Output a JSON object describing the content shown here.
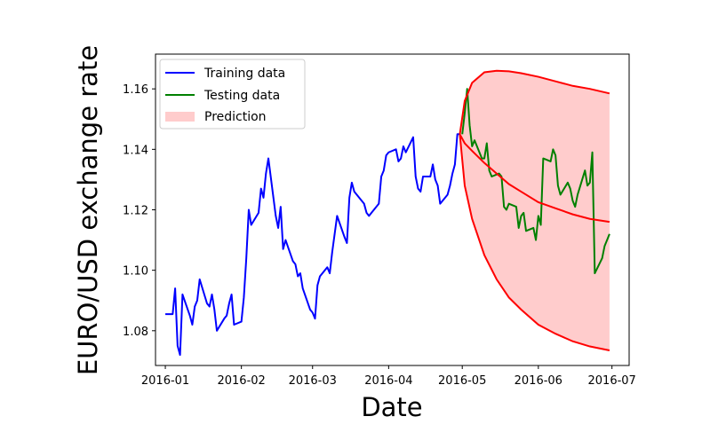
{
  "chart_data": {
    "type": "line",
    "title": "",
    "xlabel": "Date",
    "ylabel": "EURO/USD exchange rate",
    "x_ticks": [
      "2016-01",
      "2016-02",
      "2016-03",
      "2016-04",
      "2016-05",
      "2016-06",
      "2016-07"
    ],
    "y_ticks": [
      "1.08",
      "1.10",
      "1.12",
      "1.14",
      "1.16"
    ],
    "xlim": [
      "2015-12-28",
      "2016-07-08"
    ],
    "ylim": [
      1.0685,
      1.1715
    ],
    "grid": false,
    "legend_position": "top-left",
    "series": [
      {
        "name": "Training data",
        "color": "#0000ff",
        "x": [
          "2016-01-01",
          "2016-01-04",
          "2016-01-05",
          "2016-01-06",
          "2016-01-07",
          "2016-01-08",
          "2016-01-11",
          "2016-01-12",
          "2016-01-13",
          "2016-01-14",
          "2016-01-15",
          "2016-01-18",
          "2016-01-19",
          "2016-01-20",
          "2016-01-21",
          "2016-01-22",
          "2016-01-25",
          "2016-01-26",
          "2016-01-27",
          "2016-01-28",
          "2016-01-29",
          "2016-02-01",
          "2016-02-02",
          "2016-02-03",
          "2016-02-04",
          "2016-02-05",
          "2016-02-08",
          "2016-02-09",
          "2016-02-10",
          "2016-02-11",
          "2016-02-12",
          "2016-02-15",
          "2016-02-16",
          "2016-02-17",
          "2016-02-18",
          "2016-02-19",
          "2016-02-22",
          "2016-02-23",
          "2016-02-24",
          "2016-02-25",
          "2016-02-26",
          "2016-02-29",
          "2016-03-01",
          "2016-03-02",
          "2016-03-03",
          "2016-03-04",
          "2016-03-07",
          "2016-03-08",
          "2016-03-09",
          "2016-03-10",
          "2016-03-11",
          "2016-03-14",
          "2016-03-15",
          "2016-03-16",
          "2016-03-17",
          "2016-03-18",
          "2016-03-21",
          "2016-03-22",
          "2016-03-23",
          "2016-03-24",
          "2016-03-25",
          "2016-03-28",
          "2016-03-29",
          "2016-03-30",
          "2016-03-31",
          "2016-04-01",
          "2016-04-04",
          "2016-04-05",
          "2016-04-06",
          "2016-04-07",
          "2016-04-08",
          "2016-04-11",
          "2016-04-12",
          "2016-04-13",
          "2016-04-14",
          "2016-04-15",
          "2016-04-18",
          "2016-04-19",
          "2016-04-20",
          "2016-04-21",
          "2016-04-22",
          "2016-04-25",
          "2016-04-26",
          "2016-04-27",
          "2016-04-28",
          "2016-04-29",
          "2016-04-30"
        ],
        "values": [
          1.0855,
          1.0855,
          1.094,
          1.075,
          1.072,
          1.092,
          1.085,
          1.082,
          1.088,
          1.09,
          1.097,
          1.089,
          1.088,
          1.092,
          1.087,
          1.08,
          1.084,
          1.085,
          1.089,
          1.092,
          1.082,
          1.083,
          1.091,
          1.104,
          1.12,
          1.115,
          1.119,
          1.127,
          1.124,
          1.132,
          1.137,
          1.118,
          1.114,
          1.121,
          1.107,
          1.11,
          1.103,
          1.102,
          1.098,
          1.099,
          1.094,
          1.087,
          1.086,
          1.084,
          1.095,
          1.098,
          1.101,
          1.099,
          1.106,
          1.112,
          1.118,
          1.111,
          1.109,
          1.124,
          1.129,
          1.126,
          1.123,
          1.122,
          1.119,
          1.118,
          1.119,
          1.122,
          1.131,
          1.133,
          1.138,
          1.139,
          1.14,
          1.136,
          1.137,
          1.141,
          1.139,
          1.144,
          1.131,
          1.127,
          1.126,
          1.131,
          1.131,
          1.135,
          1.13,
          1.128,
          1.122,
          1.125,
          1.128,
          1.132,
          1.135,
          1.145,
          1.145
        ]
      },
      {
        "name": "Testing data",
        "color": "#008000",
        "x": [
          "2016-05-01",
          "2016-05-02",
          "2016-05-03",
          "2016-05-04",
          "2016-05-05",
          "2016-05-06",
          "2016-05-09",
          "2016-05-10",
          "2016-05-11",
          "2016-05-12",
          "2016-05-13",
          "2016-05-16",
          "2016-05-17",
          "2016-05-18",
          "2016-05-19",
          "2016-05-20",
          "2016-05-23",
          "2016-05-24",
          "2016-05-25",
          "2016-05-26",
          "2016-05-27",
          "2016-05-30",
          "2016-05-31",
          "2016-06-01",
          "2016-06-02",
          "2016-06-03",
          "2016-06-06",
          "2016-06-07",
          "2016-06-08",
          "2016-06-09",
          "2016-06-10",
          "2016-06-13",
          "2016-06-14",
          "2016-06-15",
          "2016-06-16",
          "2016-06-17",
          "2016-06-20",
          "2016-06-21",
          "2016-06-22",
          "2016-06-23",
          "2016-06-24",
          "2016-06-27",
          "2016-06-28",
          "2016-06-29",
          "2016-06-30"
        ],
        "values": [
          1.145,
          1.152,
          1.16,
          1.148,
          1.141,
          1.143,
          1.137,
          1.137,
          1.142,
          1.133,
          1.131,
          1.132,
          1.131,
          1.121,
          1.12,
          1.122,
          1.121,
          1.114,
          1.118,
          1.119,
          1.113,
          1.114,
          1.11,
          1.118,
          1.115,
          1.137,
          1.136,
          1.14,
          1.138,
          1.128,
          1.125,
          1.129,
          1.127,
          1.123,
          1.121,
          1.125,
          1.133,
          1.128,
          1.129,
          1.139,
          1.099,
          1.104,
          1.108,
          1.11,
          1.112
        ]
      }
    ],
    "prediction_band": {
      "name": "Prediction",
      "fill_color": "#ffcccc",
      "line_color": "#ff0000",
      "x": [
        "2016-04-30",
        "2016-05-02",
        "2016-05-05",
        "2016-05-10",
        "2016-05-15",
        "2016-05-20",
        "2016-05-25",
        "2016-06-01",
        "2016-06-08",
        "2016-06-15",
        "2016-06-22",
        "2016-06-30"
      ],
      "upper": [
        1.145,
        1.156,
        1.162,
        1.1655,
        1.166,
        1.1658,
        1.1652,
        1.164,
        1.1625,
        1.161,
        1.16,
        1.1585
      ],
      "mean": [
        1.145,
        1.142,
        1.1395,
        1.1355,
        1.132,
        1.1285,
        1.126,
        1.1225,
        1.1205,
        1.1185,
        1.117,
        1.116
      ],
      "lower": [
        1.145,
        1.128,
        1.117,
        1.105,
        1.097,
        1.091,
        1.087,
        1.082,
        1.079,
        1.0765,
        1.0748,
        1.0735
      ]
    }
  }
}
